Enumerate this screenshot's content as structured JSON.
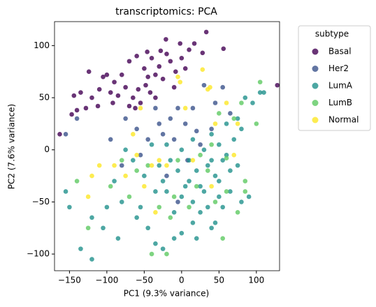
{
  "chart_data": {
    "type": "scatter",
    "title": "transcriptomics: PCA",
    "x_label": "PC1 (9.3% variance)",
    "y_label": "PC2 (7.6% variance)",
    "legend_title": "subtype",
    "legend_position": "outside-upper-right",
    "xlim": [
      -170,
      131
    ],
    "ylim": [
      -116,
      123
    ],
    "xticks": [
      {
        "value": -150,
        "label": "−150"
      },
      {
        "value": -100,
        "label": "−100"
      },
      {
        "value": -50,
        "label": "−50"
      },
      0,
      50,
      100
    ],
    "yticks": [
      {
        "value": -100,
        "label": "−100"
      },
      {
        "value": -50,
        "label": "−50"
      },
      0,
      50,
      100
    ],
    "series": [
      {
        "name": "Basal",
        "color": "#440154",
        "x": [
          -21,
          33,
          -2,
          -46,
          -124,
          -144,
          -147,
          -163,
          128,
          56,
          28,
          17,
          -40,
          -30,
          -50,
          -60,
          -70,
          -80,
          -90,
          -100,
          -105,
          -110,
          -120,
          -128,
          -135,
          -140,
          -85,
          -75,
          -65,
          -55,
          -48,
          -35,
          -25,
          -15,
          -8,
          5,
          10,
          -42,
          -62,
          -92,
          -70,
          -45,
          -20,
          -10,
          -35,
          -58,
          -95,
          -112,
          0,
          -28
        ],
        "values": [
          106,
          113,
          102,
          94,
          75,
          52,
          34,
          15,
          62,
          97,
          93,
          102,
          88,
          80,
          78,
          90,
          85,
          72,
          65,
          72,
          70,
          58,
          50,
          40,
          55,
          38,
          52,
          60,
          50,
          45,
          62,
          72,
          68,
          85,
          75,
          78,
          96,
          55,
          40,
          45,
          42,
          70,
          92,
          60,
          50,
          58,
          55,
          42,
          88,
          95
        ]
      },
      {
        "name": "Her2",
        "color": "#3b528b",
        "x": [
          -140,
          -155,
          -95,
          -60,
          -35,
          -15,
          5,
          20,
          40,
          -25,
          -45,
          -5,
          15,
          30,
          45,
          -55,
          -10,
          8,
          -30,
          55,
          -75,
          -20,
          25,
          65,
          -80,
          -5
        ],
        "values": [
          30,
          15,
          10,
          20,
          40,
          30,
          25,
          18,
          20,
          15,
          10,
          40,
          40,
          62,
          45,
          -5,
          10,
          -10,
          25,
          60,
          30,
          -25,
          5,
          35,
          -15,
          -50
        ]
      },
      {
        "name": "LumA",
        "color": "#21918c",
        "x": [
          -155,
          -150,
          -135,
          -120,
          -105,
          -85,
          -80,
          -60,
          -55,
          -45,
          -35,
          -25,
          -10,
          0,
          10,
          20,
          30,
          40,
          50,
          60,
          70,
          80,
          95,
          105,
          110,
          90,
          80,
          65,
          55,
          45,
          35,
          25,
          15,
          5,
          -5,
          -15,
          -25,
          -35,
          -50,
          -65,
          -75,
          -40,
          -20,
          0,
          15,
          30,
          40,
          50,
          60,
          75,
          85,
          0,
          20,
          40,
          -20,
          -30,
          10,
          25,
          45,
          35,
          65,
          75,
          55,
          15,
          -10,
          50,
          -90,
          -120,
          -100
        ],
        "values": [
          -40,
          -55,
          -95,
          -105,
          -75,
          -85,
          -50,
          -65,
          -55,
          -75,
          -90,
          -95,
          -60,
          -45,
          -30,
          -20,
          -40,
          -10,
          -30,
          -5,
          10,
          20,
          45,
          55,
          55,
          -45,
          -50,
          -40,
          -55,
          -70,
          -55,
          -60,
          -50,
          -35,
          -20,
          -10,
          -30,
          -40,
          -25,
          -10,
          0,
          5,
          5,
          0,
          10,
          0,
          15,
          5,
          25,
          30,
          50,
          -80,
          -85,
          -75,
          -40,
          -15,
          -10,
          -35,
          -25,
          -15,
          -20,
          -15,
          -10,
          -70,
          -85,
          -45,
          -30,
          -65,
          -55
        ]
      },
      {
        "name": "LumB",
        "color": "#5ec962",
        "x": [
          -140,
          -125,
          -95,
          -70,
          -60,
          -45,
          -30,
          -20,
          -10,
          10,
          20,
          35,
          45,
          55,
          60,
          75,
          85,
          70,
          80,
          100,
          105,
          60,
          50,
          40,
          -5,
          25,
          -15,
          -40,
          -80,
          85
        ],
        "values": [
          -30,
          -75,
          -35,
          -45,
          -20,
          -15,
          -55,
          -100,
          -45,
          -55,
          -35,
          -20,
          -50,
          -85,
          -40,
          -60,
          -30,
          30,
          45,
          25,
          65,
          -8,
          35,
          5,
          -10,
          -5,
          -65,
          -100,
          -10,
          -40
        ]
      },
      {
        "name": "Normal",
        "color": "#fde725",
        "x": [
          -120,
          -125,
          -110,
          -90,
          -60,
          -50,
          -65,
          -55,
          -40,
          -30,
          -5,
          -2,
          28,
          35,
          38,
          5,
          15,
          45,
          60,
          70,
          -35,
          -20,
          40,
          -75,
          75
        ],
        "values": [
          -25,
          -45,
          -15,
          -15,
          -5,
          -35,
          15,
          40,
          -15,
          -10,
          70,
          65,
          77,
          58,
          60,
          40,
          -10,
          25,
          45,
          -5,
          -60,
          -15,
          -35,
          -25,
          25
        ]
      }
    ]
  }
}
